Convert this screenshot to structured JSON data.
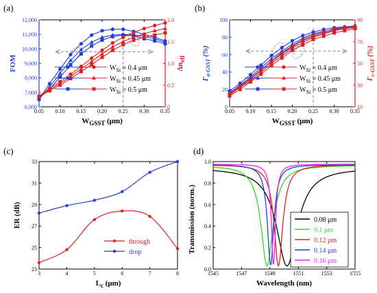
{
  "colors": {
    "blue": "#1f3fd8",
    "red": "#e02020",
    "black": "#000000",
    "green": "#22dd22",
    "magenta": "#ee22ee",
    "gray": "#808080"
  },
  "chart_data": [
    {
      "panel_label": "(a)",
      "type": "line",
      "xlabel_main": "W",
      "xlabel_sub": "GSST",
      "xlabel_unit": " (μm)",
      "ylabel": "FOM",
      "y2label_main": "Δn",
      "y2label_sub": "eff",
      "xlim": [
        0.05,
        0.35
      ],
      "xticks": [
        "0.05",
        "0.10",
        "0.15",
        "0.20",
        "0.25",
        "0.30",
        "0.35"
      ],
      "ylim": [
        6000,
        12000
      ],
      "yticks": [
        "6,000",
        "7,000",
        "8,000",
        "9,000",
        "10,000",
        "11,000",
        "12,000"
      ],
      "y2lim": [
        0,
        2.0
      ],
      "y2ticks": [
        "0",
        "0.5",
        "1.0",
        "1.5",
        "2.0"
      ],
      "legend": {
        "w_main": "W",
        "w_sub": "Si",
        "entries": [
          " = 0.4 μm",
          " = 0.45 μm",
          " = 0.5 μm"
        ]
      },
      "x": [
        0.05,
        0.075,
        0.1,
        0.125,
        0.15,
        0.175,
        0.2,
        0.225,
        0.25,
        0.275,
        0.3,
        0.325,
        0.35
      ],
      "series": [
        {
          "axis": "left",
          "marker": "circle",
          "color": "blue",
          "values": [
            6500,
            7600,
            8600,
            9600,
            10350,
            10950,
            11250,
            11350,
            11350,
            11200,
            11000,
            10800,
            10550
          ]
        },
        {
          "axis": "left",
          "marker": "triangle",
          "color": "blue",
          "values": [
            6550,
            7350,
            8300,
            9200,
            9950,
            10450,
            10800,
            10950,
            11000,
            10950,
            10850,
            10700,
            10450
          ]
        },
        {
          "axis": "left",
          "marker": "square",
          "color": "blue",
          "values": [
            6600,
            7200,
            8050,
            8900,
            9650,
            10200,
            10600,
            10850,
            10950,
            10900,
            10700,
            10550,
            10350
          ]
        },
        {
          "axis": "right",
          "marker": "circle",
          "color": "red",
          "values": [
            0.25,
            0.42,
            0.58,
            0.75,
            0.93,
            1.12,
            1.3,
            1.47,
            1.6,
            1.71,
            1.8,
            1.87,
            1.93
          ]
        },
        {
          "axis": "right",
          "marker": "triangle",
          "color": "red",
          "values": [
            0.24,
            0.39,
            0.54,
            0.7,
            0.87,
            1.04,
            1.22,
            1.38,
            1.5,
            1.6,
            1.68,
            1.75,
            1.8
          ]
        },
        {
          "axis": "right",
          "marker": "square",
          "color": "red",
          "values": [
            0.23,
            0.37,
            0.5,
            0.65,
            0.81,
            0.97,
            1.14,
            1.3,
            1.43,
            1.53,
            1.6,
            1.65,
            1.7
          ]
        }
      ]
    },
    {
      "panel_label": "(b)",
      "type": "line",
      "xlabel_main": "W",
      "xlabel_sub": "GSST",
      "xlabel_unit": " (μm)",
      "ylabel_main": "Γ",
      "ylabel_sub": "a-GSST",
      "ylabel_unit": " (%)",
      "y2label_main": "Γ",
      "y2label_sub": "c-GSST",
      "y2label_unit": " (%)",
      "xlim": [
        0.05,
        0.35
      ],
      "xticks": [
        "0.05",
        "0.10",
        "0.15",
        "0.20",
        "0.25",
        "0.30",
        "0.35"
      ],
      "ylim": [
        0,
        100
      ],
      "yticks": [
        "0",
        "20",
        "40",
        "60",
        "80",
        "100"
      ],
      "y2lim": [
        10,
        90
      ],
      "y2ticks": [
        "10",
        "30",
        "50",
        "70",
        "90"
      ],
      "legend": {
        "w_main": "W",
        "w_sub": "Si",
        "entries": [
          " = 0.4 μm",
          " = 0.45 μm",
          " = 0.5 μm"
        ]
      },
      "x": [
        0.05,
        0.075,
        0.1,
        0.125,
        0.15,
        0.175,
        0.2,
        0.225,
        0.25,
        0.275,
        0.3,
        0.325,
        0.35
      ],
      "series": [
        {
          "axis": "left",
          "marker": "circle",
          "color": "blue",
          "values": [
            18,
            27,
            37,
            48,
            59,
            68,
            76,
            82,
            86,
            89,
            91,
            92,
            93
          ]
        },
        {
          "axis": "left",
          "marker": "triangle",
          "color": "blue",
          "values": [
            16,
            25,
            34,
            45,
            55,
            64,
            72,
            79,
            84,
            87,
            89,
            91,
            92
          ]
        },
        {
          "axis": "left",
          "marker": "square",
          "color": "blue",
          "values": [
            14,
            23,
            32,
            42,
            52,
            61,
            69,
            76,
            81,
            85,
            88,
            90,
            91
          ]
        },
        {
          "axis": "right",
          "marker": "circle",
          "color": "red",
          "values": [
            22,
            29,
            36,
            44,
            52,
            60,
            66,
            72,
            76,
            79,
            82,
            83,
            84
          ]
        },
        {
          "axis": "right",
          "marker": "triangle",
          "color": "red",
          "values": [
            21,
            28,
            34,
            42,
            50,
            57,
            64,
            69,
            74,
            77,
            80,
            82,
            83
          ]
        },
        {
          "axis": "right",
          "marker": "square",
          "color": "red",
          "values": [
            20,
            26,
            33,
            40,
            48,
            55,
            62,
            67,
            72,
            75,
            78,
            80,
            82
          ]
        }
      ]
    },
    {
      "panel_label": "(c)",
      "type": "line",
      "xlabel_main": "L",
      "xlabel_sub": "c",
      "xlabel_unit": " (μm)",
      "ylabel": "ER (dB)",
      "xlim": [
        3,
        8
      ],
      "xticks": [
        "3",
        "4",
        "5",
        "6",
        "7",
        "8"
      ],
      "ylim": [
        23,
        33
      ],
      "yticks": [
        "23",
        "25",
        "27",
        "29",
        "31",
        "33"
      ],
      "x": [
        3,
        4,
        5,
        6,
        7,
        8
      ],
      "series": [
        {
          "name": "through",
          "color": "red",
          "values": [
            23.6,
            24.8,
            27.6,
            28.4,
            27.9,
            24.9
          ]
        },
        {
          "name": "drop",
          "color": "blue",
          "values": [
            28.2,
            28.9,
            29.4,
            30.2,
            32.0,
            33.0
          ]
        }
      ]
    },
    {
      "panel_label": "(d)",
      "type": "line",
      "xlabel": "Wavelength (nm)",
      "ylabel": "Transmission (norm.)",
      "xlim": [
        1545,
        1555
      ],
      "xticks": [
        "1545",
        "1547",
        "1549",
        "1551",
        "1553",
        "1555"
      ],
      "ylim": [
        0,
        1.0
      ],
      "yticks": [
        "0.0",
        "0.2",
        "0.4",
        "0.6",
        "0.8",
        "1.0"
      ],
      "series": [
        {
          "name": "0.08 μm",
          "color": "black",
          "center": 1550.2,
          "width": 1.8,
          "baseline": 0.96,
          "min": 0.01
        },
        {
          "name": "0.1 μm",
          "color": "green",
          "center": 1548.8,
          "width": 1.05,
          "baseline": 0.985,
          "min": 0.01
        },
        {
          "name": "0.12 μm",
          "color": "red",
          "center": 1549.6,
          "width": 0.75,
          "baseline": 0.99,
          "min": 0.01
        },
        {
          "name": "0.14 μm",
          "color": "blue",
          "center": 1549.05,
          "width": 0.55,
          "baseline": 0.99,
          "min": 0.02
        },
        {
          "name": "0.16 μm",
          "color": "magenta",
          "center": 1549.25,
          "width": 0.35,
          "baseline": 0.995,
          "min": 0.02
        }
      ]
    }
  ]
}
